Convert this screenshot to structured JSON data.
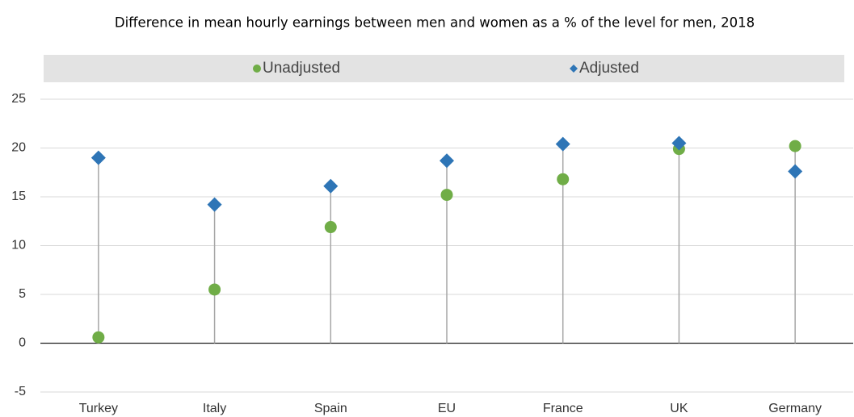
{
  "chart_data": {
    "type": "dot",
    "title": "Difference in mean hourly earnings between men and women as a % of the level for men, 2018",
    "categories": [
      "Turkey",
      "Italy",
      "Spain",
      "EU",
      "France",
      "UK",
      "Germany"
    ],
    "series": [
      {
        "name": "Unadjusted",
        "color": "#70ad47",
        "marker": "circle",
        "values": [
          0.6,
          5.5,
          11.9,
          15.2,
          16.8,
          19.9,
          20.2
        ]
      },
      {
        "name": "Adjusted",
        "color": "#2e75b6",
        "marker": "diamond",
        "values": [
          19.0,
          14.2,
          16.1,
          18.7,
          20.4,
          20.5,
          17.6
        ]
      }
    ],
    "ylim": [
      -5,
      25
    ],
    "yticks": [
      -5,
      0,
      5,
      10,
      15,
      20,
      25
    ],
    "grid": true,
    "legend": "top"
  }
}
